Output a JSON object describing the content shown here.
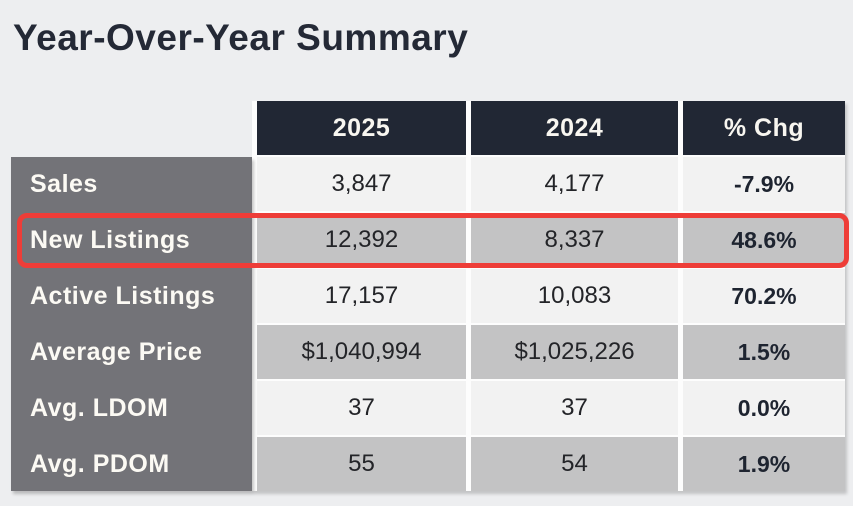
{
  "page": {
    "title": "Year-Over-Year Summary"
  },
  "chart_data": {
    "type": "table",
    "title": "Year-Over-Year Summary",
    "columns": [
      "2025",
      "2024",
      "% Chg"
    ],
    "rows": [
      {
        "label": "Sales",
        "values": [
          "3,847",
          "4,177",
          "-7.9%"
        ],
        "highlight": false
      },
      {
        "label": "New Listings",
        "values": [
          "12,392",
          "8,337",
          "48.6%"
        ],
        "highlight": true
      },
      {
        "label": "Active Listings",
        "values": [
          "17,157",
          "10,083",
          "70.2%"
        ],
        "highlight": false
      },
      {
        "label": "Average Price",
        "values": [
          "$1,040,994",
          "$1,025,226",
          "1.5%"
        ],
        "highlight": false
      },
      {
        "label": "Avg. LDOM",
        "values": [
          "37",
          "37",
          "0.0%"
        ],
        "highlight": false
      },
      {
        "label": "Avg. PDOM",
        "values": [
          "55",
          "54",
          "1.9%"
        ],
        "highlight": false
      }
    ],
    "highlighted_row": "New Listings",
    "layout": {
      "legend": false,
      "grid": false,
      "header_position": "top",
      "row_shading": "alternating"
    }
  },
  "colors": {
    "page_bg": "#edeef0",
    "title_text": "#242936",
    "header_bg": "#212734",
    "header_text": "#f8f6f0",
    "row_label_bg": "#737378",
    "row_label_text": "#fcfaf4",
    "cell_light": "#f2f2f2",
    "cell_shaded": "#c3c3c4",
    "value_text": "#232428",
    "pct_text": "#1e2430",
    "highlight_border": "#ee3d38",
    "cell_gap": "#fdfdfd"
  }
}
